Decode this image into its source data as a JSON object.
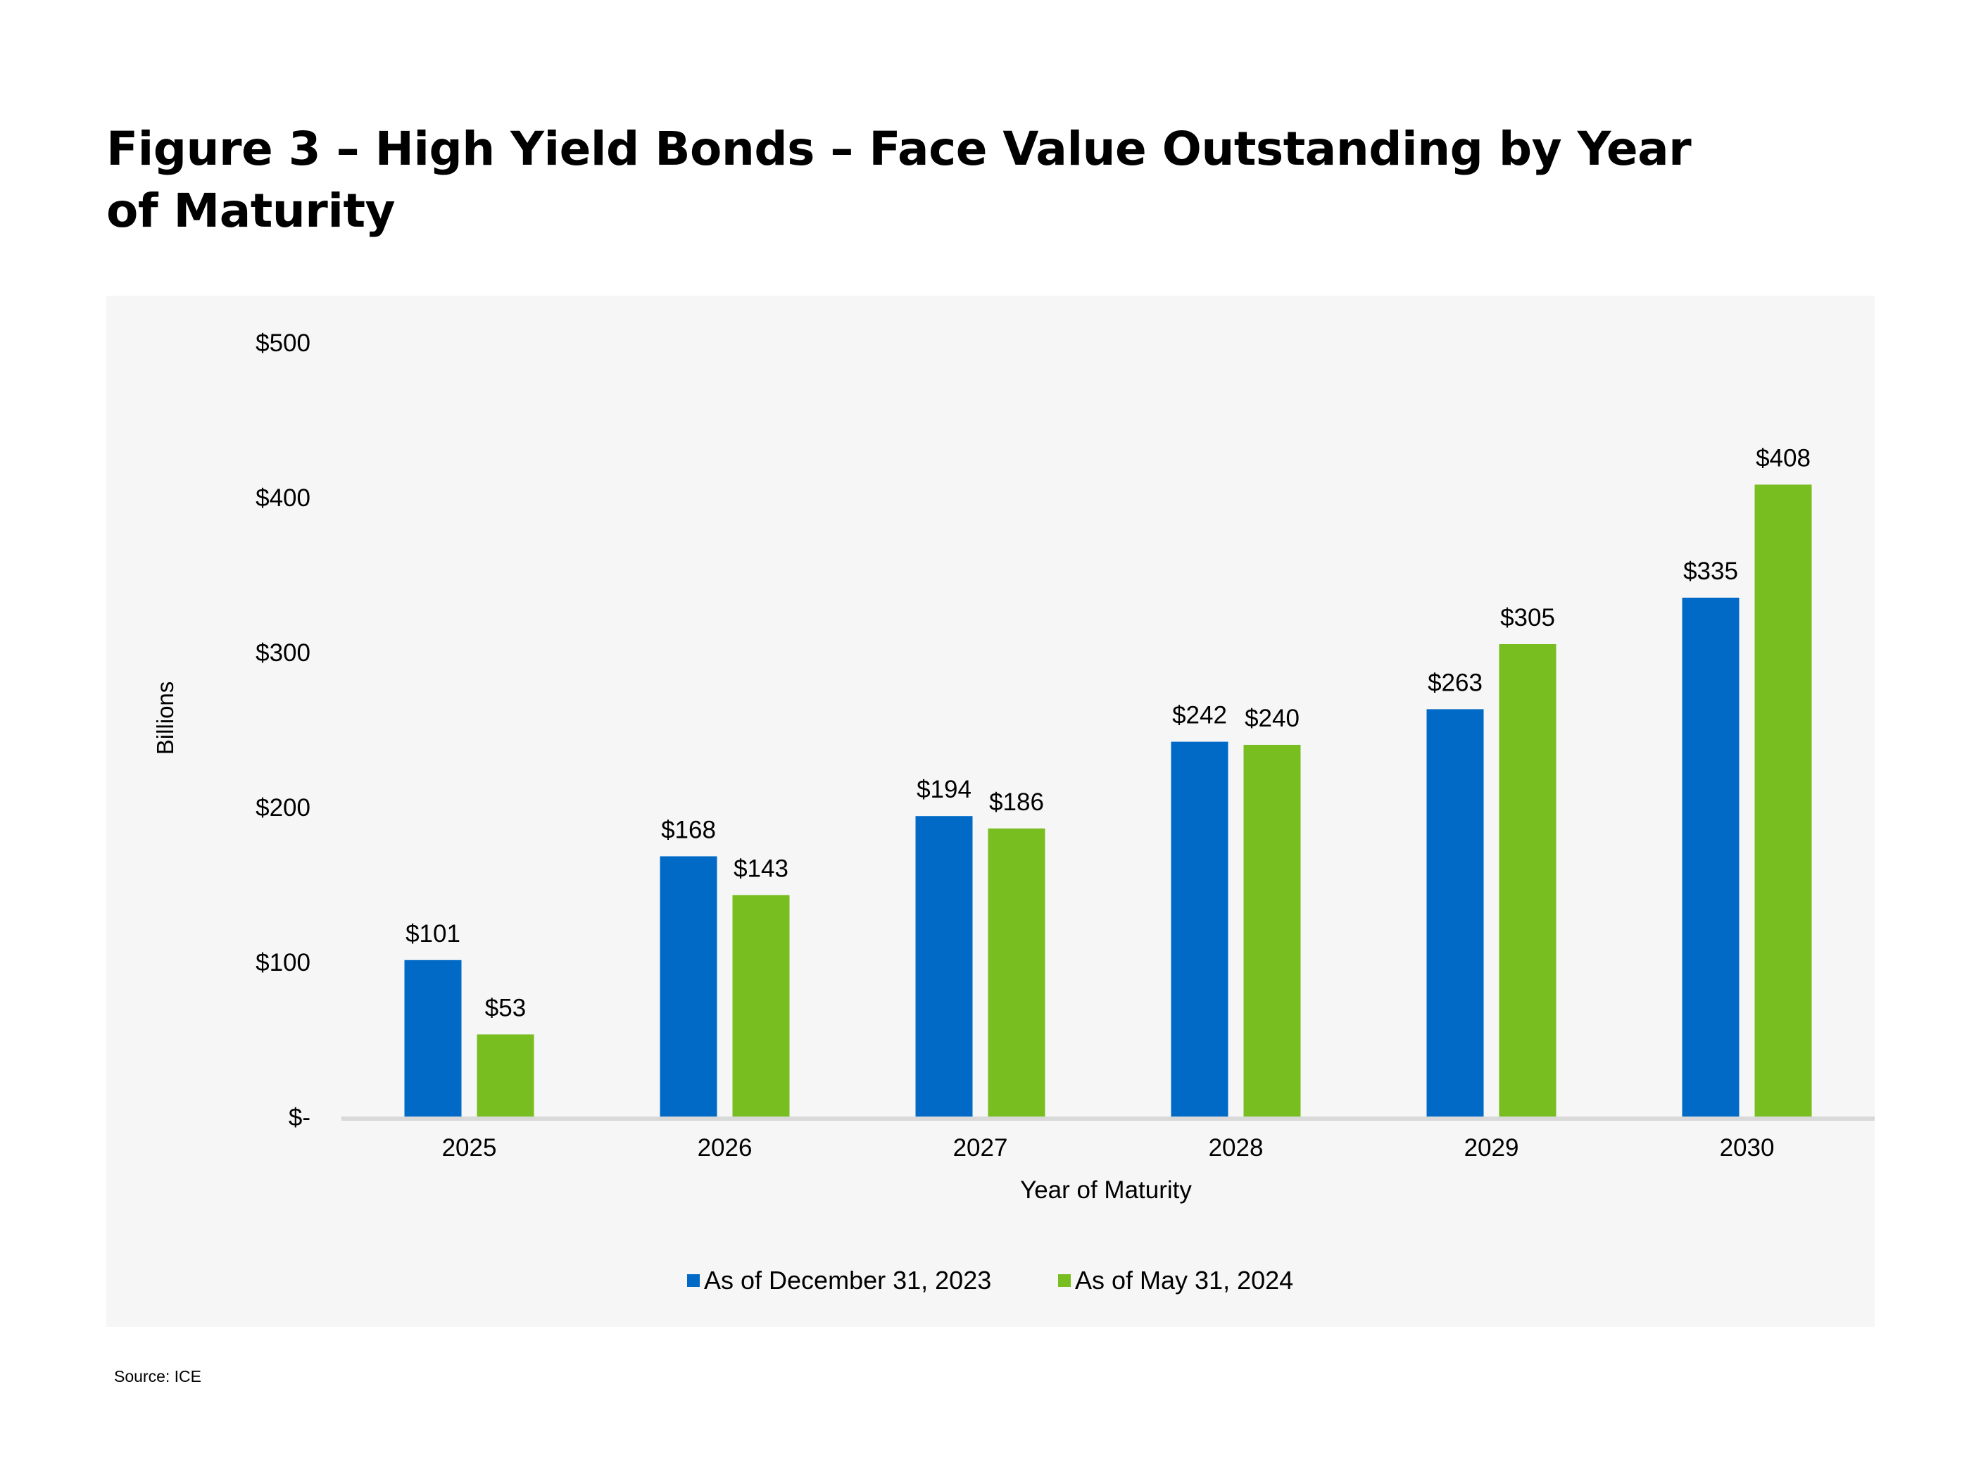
{
  "title": "Figure 3 – High Yield Bonds – Face Value Outstanding by Year of Maturity",
  "source": "Source: ICE",
  "chart_data": {
    "type": "bar",
    "categories": [
      "2025",
      "2026",
      "2027",
      "2028",
      "2029",
      "2030"
    ],
    "series": [
      {
        "name": "As of December 31, 2023",
        "color": "#006ac6",
        "values": [
          101,
          168,
          194,
          242,
          263,
          335
        ],
        "labels": [
          "$101",
          "$168",
          "$194",
          "$242",
          "$263",
          "$335"
        ]
      },
      {
        "name": "As of May 31, 2024",
        "color": "#78be20",
        "values": [
          53,
          143,
          186,
          240,
          305,
          408
        ],
        "labels": [
          "$53",
          "$143",
          "$186",
          "$240",
          "$305",
          "$408"
        ]
      }
    ],
    "ylim": [
      0,
      500
    ],
    "yticks": [
      0,
      100,
      200,
      300,
      400,
      500
    ],
    "ytick_labels": [
      "$-",
      "$100",
      "$200",
      "$300",
      "$400",
      "$500"
    ],
    "xlabel": "Year of Maturity",
    "ylabel": "Billions",
    "grid": false,
    "legend_position": "bottom-center",
    "axis_color": "#d9d9d9"
  }
}
